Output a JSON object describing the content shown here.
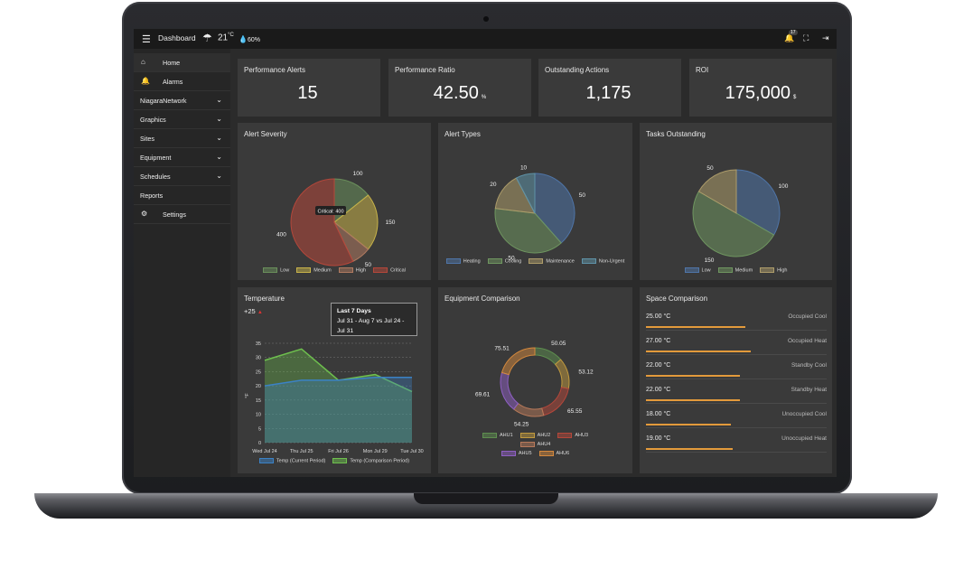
{
  "topbar": {
    "menu_icon": "menu-icon",
    "title": "Dashboard",
    "weather_icon": "rain-cloud-icon",
    "temperature": "21",
    "temp_unit": "°C",
    "humidity": "60%",
    "notification_count": "17"
  },
  "sidebar": {
    "items": [
      {
        "label": "Home",
        "icon": "home-icon"
      },
      {
        "label": "Alarms",
        "icon": "bell-icon"
      },
      {
        "label": "NiagaraNetwork"
      },
      {
        "label": "Graphics"
      },
      {
        "label": "Sites"
      },
      {
        "label": "Equipment"
      },
      {
        "label": "Schedules"
      },
      {
        "label": "Reports"
      },
      {
        "label": "Settings",
        "icon": "gear-icon"
      }
    ]
  },
  "kpis": [
    {
      "title": "Performance Alerts",
      "value": "15",
      "unit": ""
    },
    {
      "title": "Performance Ratio",
      "value": "42.50",
      "unit": "%"
    },
    {
      "title": "Outstanding Actions",
      "value": "1,175",
      "unit": ""
    },
    {
      "title": "ROI",
      "value": "175,000",
      "unit": "$"
    }
  ],
  "cards": {
    "alert_severity": {
      "title": "Alert Severity",
      "tooltip": "Critical: 400"
    },
    "alert_types": {
      "title": "Alert Types"
    },
    "tasks_outstanding": {
      "title": "Tasks Outstanding"
    },
    "temperature": {
      "title": "Temperature",
      "delta": "+25",
      "tooltip_title": "Last 7 Days",
      "tooltip_text": "Jul 31 - Aug 7 vs Jul 24 - Jul 31"
    },
    "equipment": {
      "title": "Equipment Comparison"
    },
    "space": {
      "title": "Space Comparison"
    }
  },
  "chart_data": [
    {
      "type": "pie",
      "title": "Alert Severity",
      "labels": [
        "Low",
        "Medium",
        "High",
        "Critical"
      ],
      "values": [
        100,
        150,
        50,
        400
      ],
      "colors": [
        "#6a8f5b",
        "#c8b349",
        "#b07a60",
        "#b5473a"
      ]
    },
    {
      "type": "pie",
      "title": "Alert Types",
      "labels": [
        "Heating",
        "Cooling",
        "Maintenance",
        "Non-Urgent"
      ],
      "values": [
        50,
        50,
        20,
        10
      ],
      "colors": [
        "#4f75a8",
        "#6f9660",
        "#ad9c6a",
        "#5f93a8"
      ]
    },
    {
      "type": "pie",
      "title": "Tasks Outstanding",
      "labels": [
        "Low",
        "Medium",
        "High"
      ],
      "values": [
        100,
        150,
        50
      ],
      "colors": [
        "#4f75a8",
        "#6f9660",
        "#ad9c6a"
      ]
    },
    {
      "type": "line",
      "title": "Temperature",
      "ylabel": "°F",
      "ylim": [
        0,
        35
      ],
      "categories": [
        "Wed Jul 24",
        "Thu Jul 25",
        "Fri Jul 26",
        "Mon Jul 29",
        "Tue Jul 30"
      ],
      "series": [
        {
          "name": "Temp (Current Period)",
          "color": "#3b82c6",
          "values": [
            20,
            22,
            22,
            23,
            23
          ]
        },
        {
          "name": "Temp (Comparison Period)",
          "color": "#6ec04e",
          "values": [
            29,
            33,
            22,
            24,
            18
          ]
        }
      ]
    },
    {
      "type": "doughnut",
      "title": "Equipment Comparison",
      "labels": [
        "AHU1",
        "AHU2",
        "AHU3",
        "AHU4",
        "AHU5",
        "AHU6"
      ],
      "values": [
        50.05,
        53.12,
        65.55,
        54.25,
        69.61,
        75.51
      ],
      "colors": [
        "#5e8f4f",
        "#c29a3e",
        "#b5473a",
        "#b8795a",
        "#8f5fc4",
        "#d5893d"
      ]
    },
    {
      "type": "table",
      "title": "Space Comparison",
      "rows": [
        {
          "name": "Occupied Cool",
          "value": "25.00 °C",
          "level": 0.55
        },
        {
          "name": "Occupied Heat",
          "value": "27.00 °C",
          "level": 0.58
        },
        {
          "name": "Standby Cool",
          "value": "22.00 °C",
          "level": 0.52
        },
        {
          "name": "Standby Heat",
          "value": "22.00 °C",
          "level": 0.52
        },
        {
          "name": "Unoccupied Cool",
          "value": "18.00 °C",
          "level": 0.47
        },
        {
          "name": "Unoccupied Heat",
          "value": "19.00 °C",
          "level": 0.48
        }
      ]
    }
  ]
}
